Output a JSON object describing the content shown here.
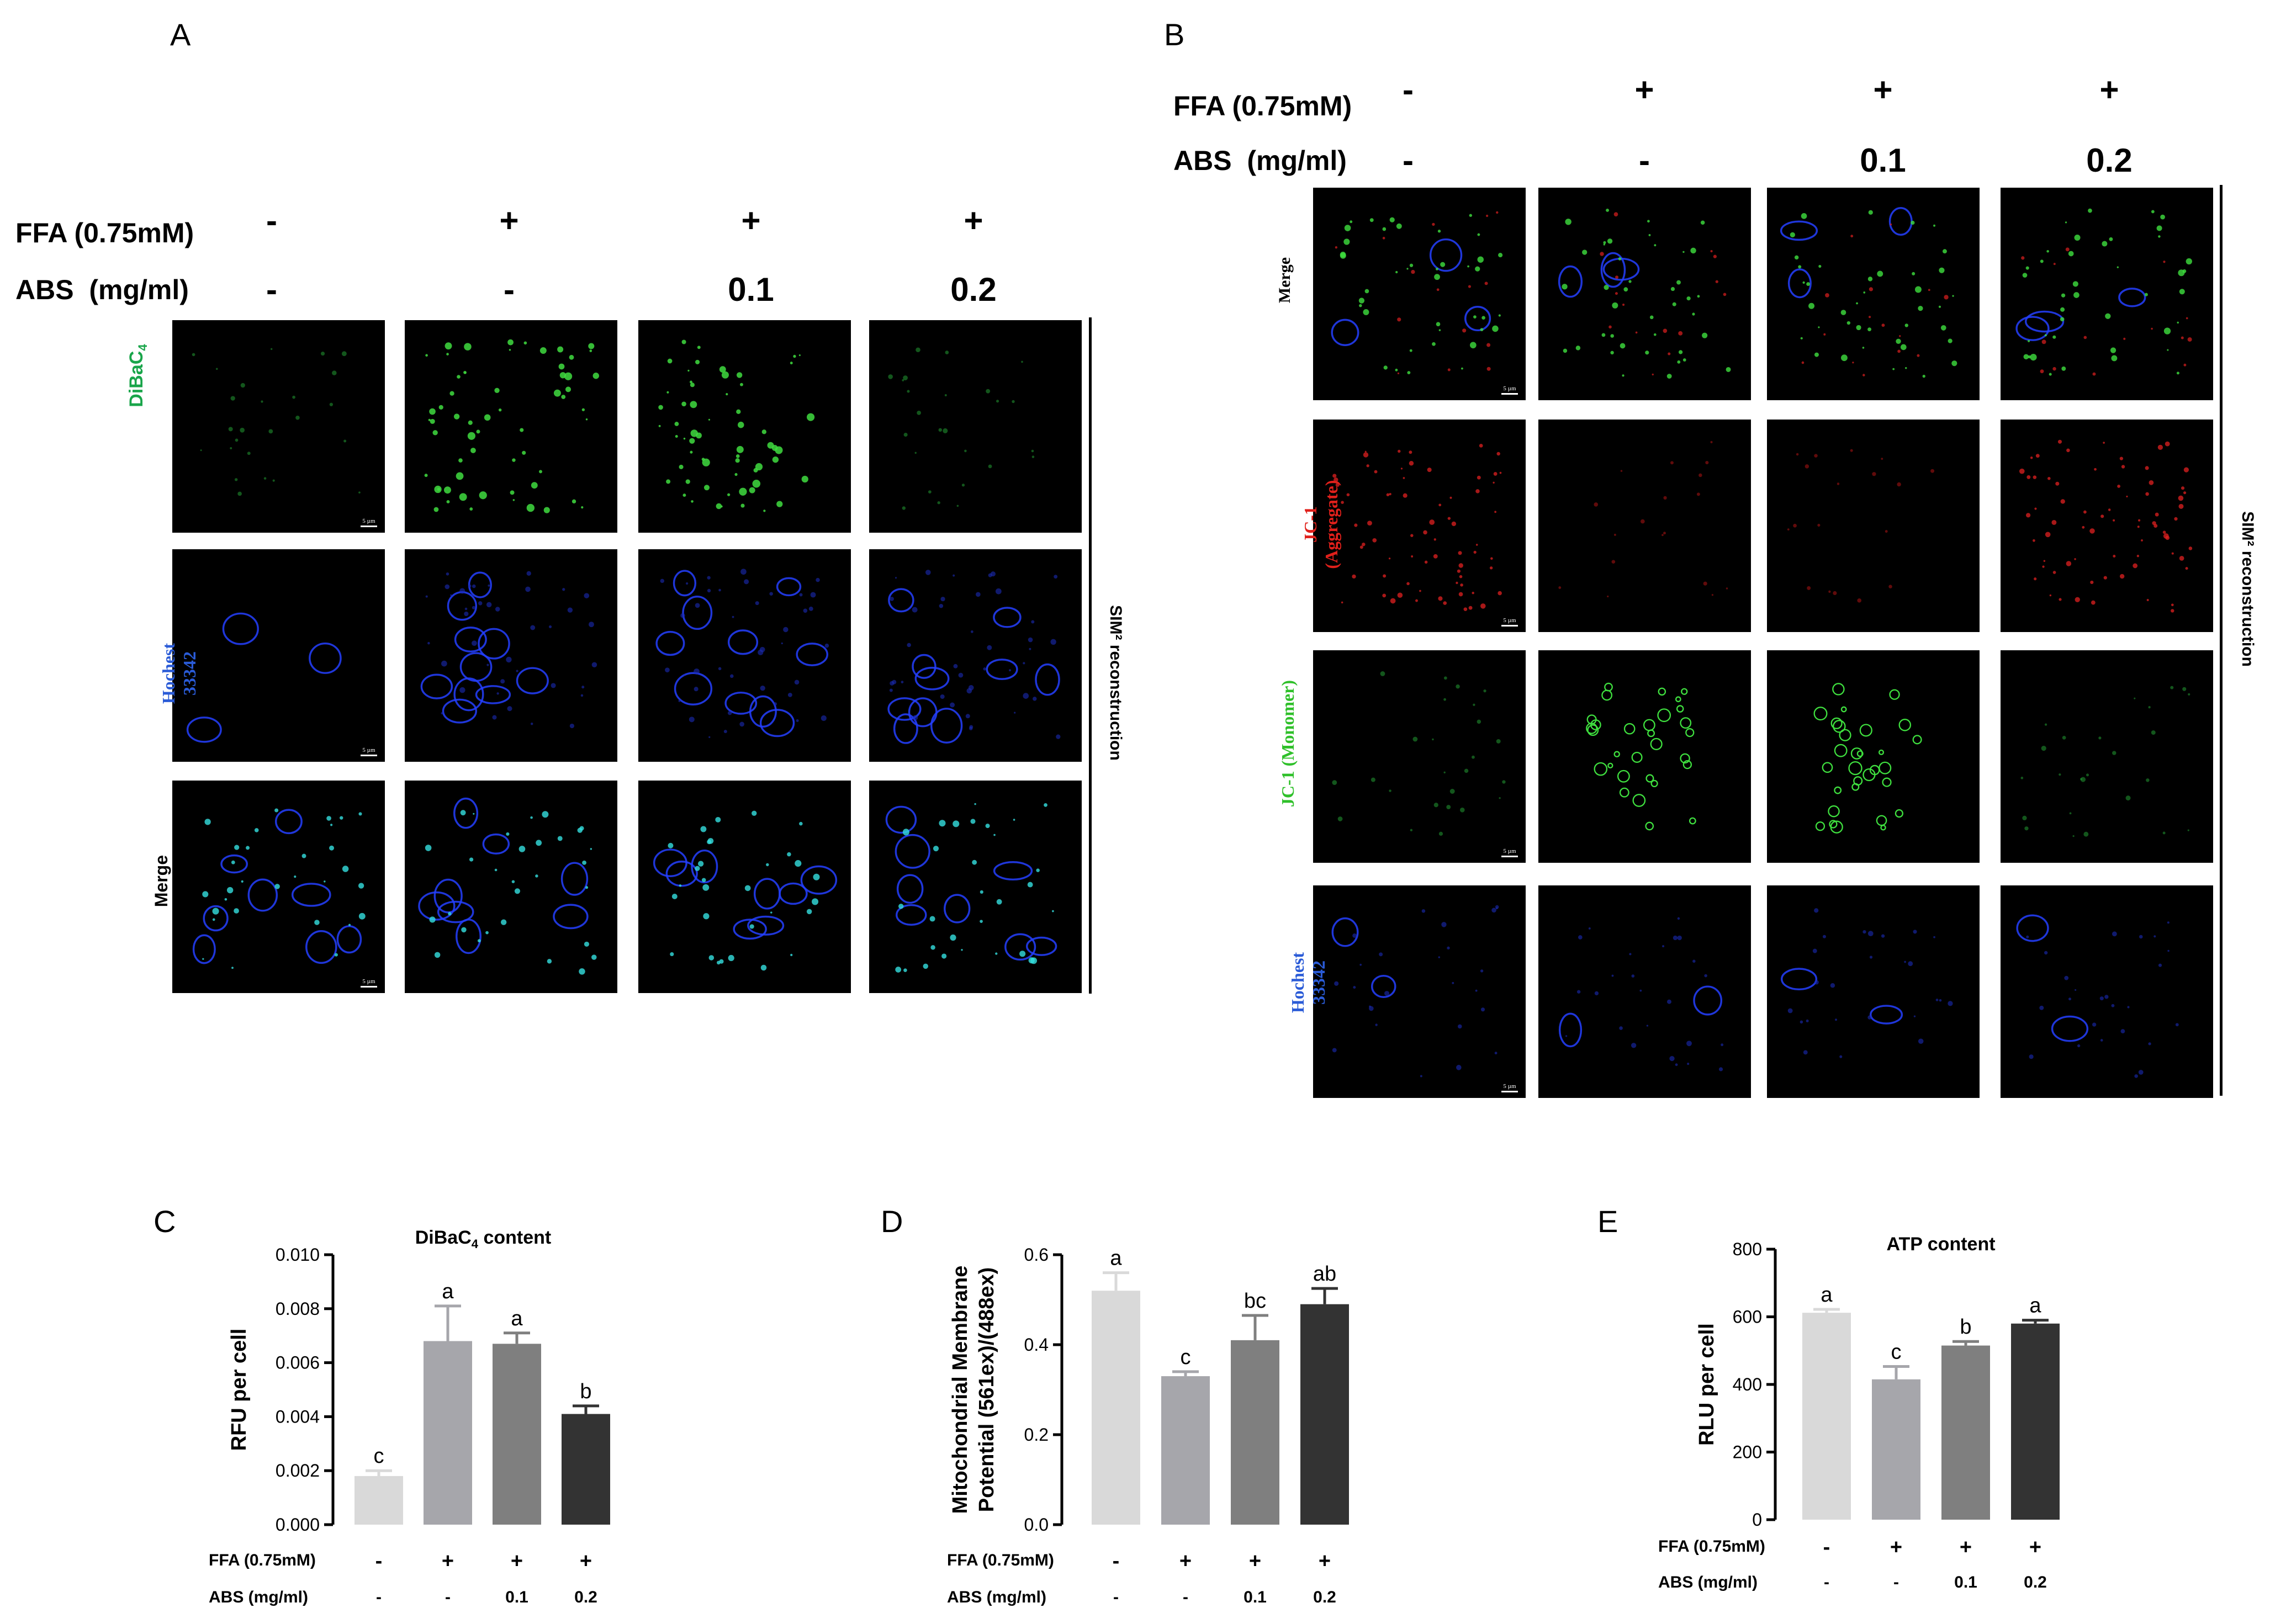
{
  "panelA": {
    "letter": "A",
    "ffa_label": "FFA (0.75mM)",
    "abs_label": "ABS  (mg/ml)",
    "ffa_signs": [
      "-",
      "+",
      "+",
      "+"
    ],
    "abs_values": [
      "-",
      "-",
      "0.1",
      "0.2"
    ],
    "rows": [
      {
        "label_main": "DiBaC",
        "label_sub": "4",
        "color": "#19a54a"
      },
      {
        "label_line1": "Hochest",
        "label_line2": "33342",
        "color": "#2a5bd7"
      },
      {
        "label": "Merge",
        "color": "#000000"
      }
    ],
    "side_label": "SIM² reconstruction",
    "scale_text": "5 µm"
  },
  "panelB": {
    "letter": "B",
    "ffa_label": "FFA (0.75mM)",
    "abs_label": "ABS  (mg/ml)",
    "ffa_signs": [
      "-",
      "+",
      "+",
      "+"
    ],
    "abs_values": [
      "-",
      "-",
      "0.1",
      "0.2"
    ],
    "rows": [
      {
        "label": "Merge",
        "color": "#000000"
      },
      {
        "label_line1": "JC-1",
        "label_line2": "(Aggregate)",
        "color": "#e0201b"
      },
      {
        "label": "JC-1 (Monomer)",
        "color": "#2fc02a"
      },
      {
        "label_line1": "Hochest",
        "label_line2": "33342",
        "color": "#2a5bd7"
      }
    ],
    "side_label": "SIM² reconstruction",
    "scale_text": "5 µm"
  },
  "chart_data": [
    {
      "panel": "C",
      "type": "bar",
      "title_main": "DiBaC",
      "title_sub": "4",
      "title_rest": " content",
      "ylabel": "RFU per cell",
      "ylim": [
        0,
        0.01
      ],
      "yticks": [
        "0.000",
        "0.002",
        "0.004",
        "0.006",
        "0.008",
        "0.010"
      ],
      "values": [
        0.0018,
        0.0068,
        0.0067,
        0.0041
      ],
      "errors": [
        0.0002,
        0.0013,
        0.0004,
        0.0003
      ],
      "letters": [
        "c",
        "a",
        "a",
        "b"
      ],
      "bar_colors": [
        "#d9d9d9",
        "#a6a6ab",
        "#7f7f7f",
        "#333333"
      ],
      "ffa_label": "FFA (0.75mM)",
      "abs_label": "ABS  (mg/ml)",
      "ffa_signs": [
        "-",
        "+",
        "+",
        "+"
      ],
      "abs_values": [
        "-",
        "-",
        "0.1",
        "0.2"
      ]
    },
    {
      "panel": "D",
      "type": "bar",
      "title_main": "",
      "ylabel_line1": "Mitochondrial Membrane",
      "ylabel_line2": "Potential (561ex)/(488ex)",
      "ylim": [
        0,
        0.6
      ],
      "yticks": [
        "0.0",
        "0.2",
        "0.4",
        "0.6"
      ],
      "values": [
        0.52,
        0.33,
        0.41,
        0.49
      ],
      "errors": [
        0.04,
        0.01,
        0.055,
        0.035
      ],
      "letters": [
        "a",
        "c",
        "bc",
        "ab"
      ],
      "bar_colors": [
        "#d9d9d9",
        "#a6a6ab",
        "#7f7f7f",
        "#333333"
      ],
      "ffa_label": "FFA (0.75mM)",
      "abs_label": "ABS  (mg/ml)",
      "ffa_signs": [
        "-",
        "+",
        "+",
        "+"
      ],
      "abs_values": [
        "-",
        "-",
        "0.1",
        "0.2"
      ]
    },
    {
      "panel": "E",
      "type": "bar",
      "title_main": "ATP content",
      "ylabel": "RLU per cell",
      "ylim": [
        0,
        800
      ],
      "yticks": [
        "0",
        "200",
        "400",
        "600",
        "800"
      ],
      "values": [
        612,
        415,
        515,
        580
      ],
      "errors": [
        10,
        38,
        12,
        10
      ],
      "letters": [
        "a",
        "c",
        "b",
        "a"
      ],
      "bar_colors": [
        "#d9d9d9",
        "#a6a6ab",
        "#7f7f7f",
        "#333333"
      ],
      "ffa_label": "FFA (0.75mM)",
      "abs_label": "ABS  (mg/ml)",
      "ffa_signs": [
        "-",
        "+",
        "+",
        "+"
      ],
      "abs_values": [
        "-",
        "-",
        "0.1",
        "0.2"
      ]
    }
  ]
}
